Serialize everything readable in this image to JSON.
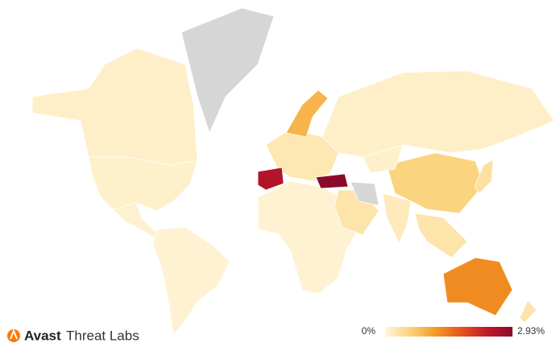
{
  "chart_data": {
    "type": "choropleth",
    "brand": {
      "name": "Avast",
      "product": "Threat Labs"
    },
    "values": [
      0.12,
      0.1,
      null,
      0.08,
      0.06,
      0.06,
      0.25,
      0.9,
      2.5,
      2.93,
      0.12,
      0.3,
      null,
      0.55,
      0.2,
      0.3,
      0.35,
      1.3,
      0.3,
      0.1
    ],
    "colorscale": [
      "#fff6dc",
      "#fbd27a",
      "#f39a22",
      "#e4541c",
      "#c0182a",
      "#8b0a2a"
    ],
    "no_data_color": "#d6d6d6",
    "legend": {
      "min": {
        "value": 0,
        "label": "0%"
      },
      "max": {
        "value": 2.93,
        "label": "2.93%"
      }
    }
  }
}
